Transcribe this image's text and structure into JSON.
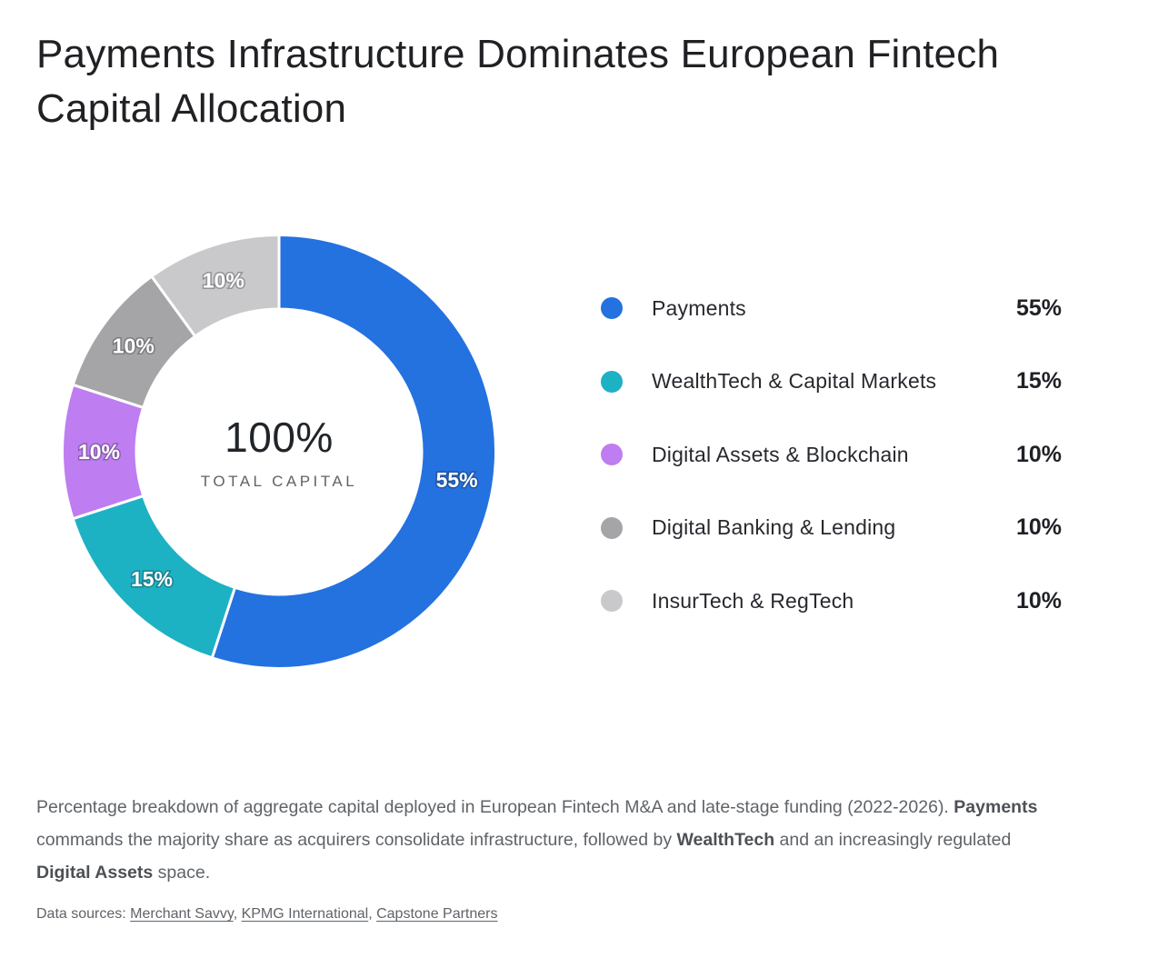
{
  "title": "Payments Infrastructure Dominates European Fintech Capital Allocation",
  "chart_data": {
    "type": "pie",
    "donut": true,
    "title": "Payments Infrastructure Dominates European Fintech Capital Allocation",
    "categories": [
      "Payments",
      "WealthTech & Capital Markets",
      "Digital Assets & Blockchain",
      "Digital Banking & Lending",
      "InsurTech & RegTech"
    ],
    "values": [
      55,
      15,
      10,
      10,
      10
    ],
    "unit": "%",
    "colors": [
      "#2471E0",
      "#1DB1C4",
      "#BE7DF0",
      "#A5A5A8",
      "#C9C9CB"
    ],
    "start_angle_deg": 0,
    "direction": "clockwise",
    "slice_labels": [
      "55%",
      "15%",
      "10%",
      "10%",
      "10%"
    ],
    "center_value": "100%",
    "center_label": "TOTAL CAPITAL",
    "legend_position": "right"
  },
  "caption": {
    "parts": [
      {
        "text": "Percentage breakdown of aggregate capital deployed in European Fintech M&A and late-stage funding (2022-2026). ",
        "bold": false
      },
      {
        "text": "Payments",
        "bold": true
      },
      {
        "text": " commands the majority share as acquirers consolidate infrastructure, followed by ",
        "bold": false
      },
      {
        "text": "WealthTech",
        "bold": true
      },
      {
        "text": " and an increasingly regulated ",
        "bold": false
      },
      {
        "text": "Digital Assets",
        "bold": true
      },
      {
        "text": " space.",
        "bold": false
      }
    ]
  },
  "sources": {
    "prefix": "Data sources: ",
    "separator": ", ",
    "links": [
      "Merchant Savvy",
      "KPMG International",
      "Capstone Partners"
    ]
  }
}
